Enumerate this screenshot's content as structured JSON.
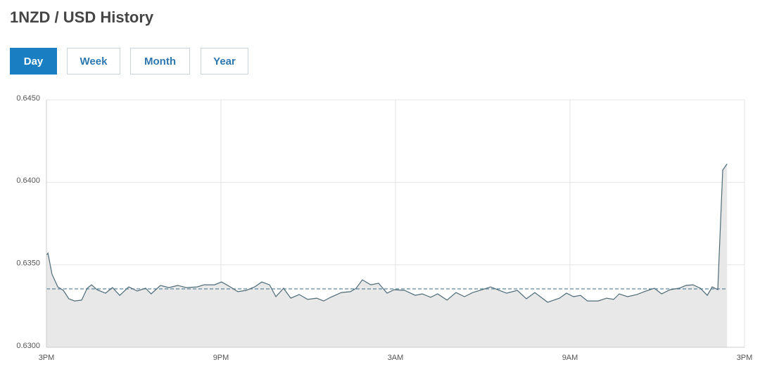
{
  "header": {
    "title": "1NZD / USD History"
  },
  "tabs": [
    {
      "label": "Day",
      "active": true
    },
    {
      "label": "Week",
      "active": false
    },
    {
      "label": "Month",
      "active": false
    },
    {
      "label": "Year",
      "active": false
    }
  ],
  "chart_data": {
    "type": "area",
    "x": [
      0,
      0.05,
      0.19,
      0.39,
      0.58,
      0.77,
      0.97,
      1.21,
      1.4,
      1.55,
      1.74,
      2.03,
      2.27,
      2.52,
      2.83,
      3.12,
      3.41,
      3.6,
      3.92,
      4.21,
      4.52,
      4.81,
      5.18,
      5.42,
      5.78,
      6.02,
      6.27,
      6.58,
      6.87,
      7.16,
      7.4,
      7.67,
      7.89,
      8.15,
      8.4,
      8.69,
      8.98,
      9.29,
      9.53,
      9.77,
      10.14,
      10.45,
      10.65,
      10.86,
      11.15,
      11.42,
      11.71,
      11.95,
      12.31,
      12.68,
      12.92,
      13.21,
      13.45,
      13.77,
      14.08,
      14.37,
      14.66,
      14.98,
      15.27,
      15.51,
      15.82,
      16.19,
      16.5,
      16.79,
      17.23,
      17.64,
      17.88,
      18.12,
      18.36,
      18.6,
      18.97,
      19.26,
      19.5,
      19.69,
      19.98,
      20.3,
      20.61,
      20.9,
      21.15,
      21.44,
      21.75,
      21.99,
      22.23,
      22.48,
      22.72,
      22.89,
      23.08,
      23.25,
      23.4
    ],
    "values": [
      0.63558,
      0.63571,
      0.63443,
      0.63366,
      0.63345,
      0.63294,
      0.63281,
      0.63286,
      0.63358,
      0.63379,
      0.63349,
      0.63328,
      0.63362,
      0.63315,
      0.63366,
      0.63341,
      0.63358,
      0.63324,
      0.63375,
      0.63362,
      0.63375,
      0.63362,
      0.63366,
      0.63379,
      0.63379,
      0.63396,
      0.63371,
      0.63337,
      0.63345,
      0.63366,
      0.63396,
      0.63379,
      0.63307,
      0.63358,
      0.63298,
      0.6332,
      0.6329,
      0.63298,
      0.63281,
      0.63303,
      0.63332,
      0.63337,
      0.63358,
      0.63409,
      0.63379,
      0.63388,
      0.63328,
      0.63349,
      0.63345,
      0.63315,
      0.63324,
      0.63303,
      0.63324,
      0.63286,
      0.63332,
      0.63307,
      0.63332,
      0.63349,
      0.63366,
      0.63349,
      0.63328,
      0.63345,
      0.63294,
      0.63332,
      0.63273,
      0.63298,
      0.63328,
      0.63307,
      0.63315,
      0.63281,
      0.63281,
      0.63298,
      0.6329,
      0.63324,
      0.63307,
      0.6332,
      0.63341,
      0.63358,
      0.63324,
      0.63349,
      0.63358,
      0.63375,
      0.63379,
      0.63358,
      0.63315,
      0.63366,
      0.63349,
      0.64074,
      0.64112
    ],
    "reference_line": 0.63354,
    "line_color": "#4d6b78",
    "fill_color": "#e8e8e8",
    "reference_color": "#4f7d93",
    "xlim": [
      0,
      24
    ],
    "xticks": [
      {
        "value": 0,
        "label": "3PM"
      },
      {
        "value": 6,
        "label": "9PM"
      },
      {
        "value": 12,
        "label": "3AM"
      },
      {
        "value": 18,
        "label": "9AM"
      },
      {
        "value": 24,
        "label": "3PM"
      }
    ],
    "ylim": [
      0.63,
      0.645
    ],
    "yticks": [
      {
        "value": 0.63,
        "label": "0.6300"
      },
      {
        "value": 0.635,
        "label": "0.6350"
      },
      {
        "value": 0.64,
        "label": "0.6400"
      },
      {
        "value": 0.645,
        "label": "0.6450"
      }
    ],
    "grid": true
  }
}
